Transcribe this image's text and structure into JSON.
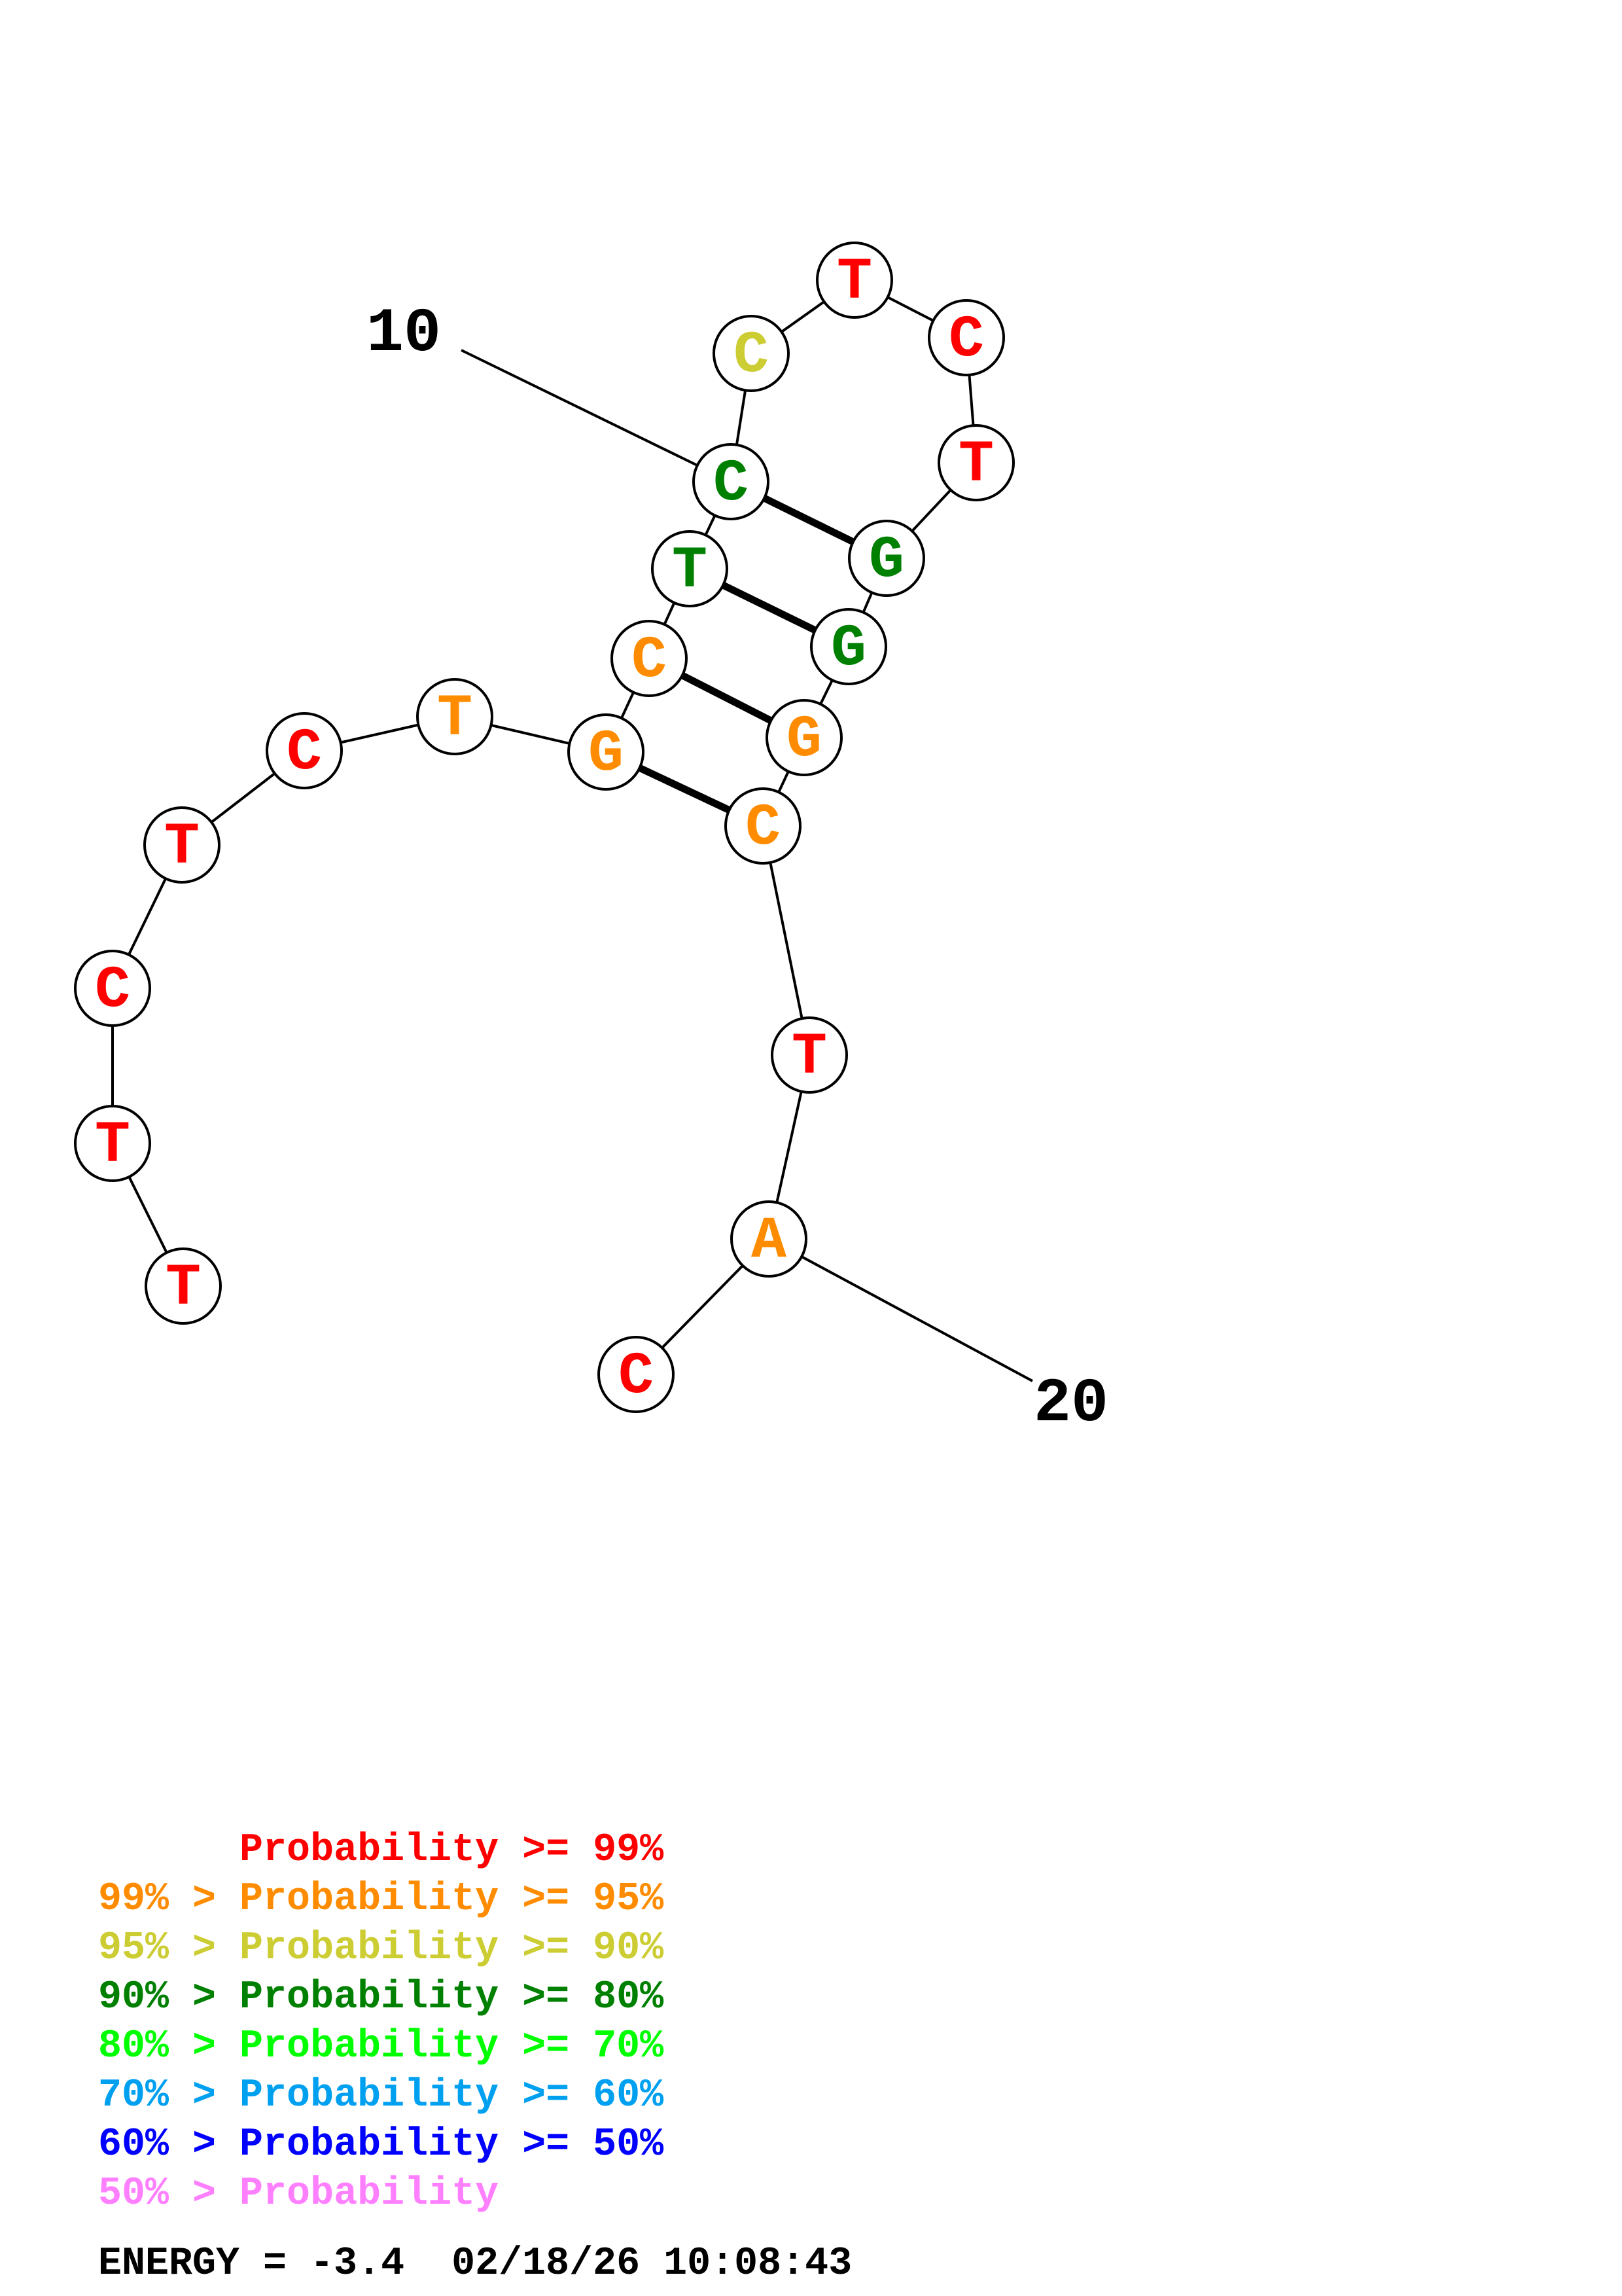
{
  "diagram": {
    "nucleotides": [
      {
        "base": "T",
        "color": "#ff0000"
      },
      {
        "base": "T",
        "color": "#ff0000"
      },
      {
        "base": "C",
        "color": "#ff0000"
      },
      {
        "base": "T",
        "color": "#ff0000"
      },
      {
        "base": "C",
        "color": "#ff0000"
      },
      {
        "base": "T",
        "color": "#ff8c00"
      },
      {
        "base": "G",
        "color": "#ff8c00"
      },
      {
        "base": "C",
        "color": "#ff8c00"
      },
      {
        "base": "T",
        "color": "#008000"
      },
      {
        "base": "C",
        "color": "#008000"
      },
      {
        "base": "C",
        "color": "#cccc33"
      },
      {
        "base": "T",
        "color": "#ff0000"
      },
      {
        "base": "C",
        "color": "#ff0000"
      },
      {
        "base": "T",
        "color": "#ff0000"
      },
      {
        "base": "G",
        "color": "#008000"
      },
      {
        "base": "G",
        "color": "#008000"
      },
      {
        "base": "G",
        "color": "#ff8c00"
      },
      {
        "base": "C",
        "color": "#ff8c00"
      },
      {
        "base": "T",
        "color": "#ff0000"
      },
      {
        "base": "A",
        "color": "#ff8c00"
      },
      {
        "base": "C",
        "color": "#ff0000"
      }
    ],
    "pairs": [
      [
        10,
        15
      ],
      [
        9,
        16
      ],
      [
        8,
        17
      ],
      [
        7,
        18
      ]
    ],
    "position_labels": [
      {
        "position": 10,
        "text": "10"
      },
      {
        "position": 20,
        "text": "20"
      }
    ]
  },
  "legend": [
    {
      "prefix": "     ",
      "text": "Probability >= 99%",
      "color": "#ff0000"
    },
    {
      "prefix": "99% > ",
      "text": "Probability >= 95%",
      "color": "#ff8c00"
    },
    {
      "prefix": "95% > ",
      "text": "Probability >= 90%",
      "color": "#cccc33"
    },
    {
      "prefix": "90% > ",
      "text": "Probability >= 80%",
      "color": "#008000"
    },
    {
      "prefix": "80% > ",
      "text": "Probability >= 70%",
      "color": "#00ff00"
    },
    {
      "prefix": "70% > ",
      "text": "Probability >= 60%",
      "color": "#00a0f0"
    },
    {
      "prefix": "60% > ",
      "text": "Probability >= 50%",
      "color": "#0000ff"
    },
    {
      "prefix": "50% > ",
      "text": "Probability",
      "color": "#ff80ff"
    }
  ],
  "footer": {
    "energy": "ENERGY = -3.4",
    "timestamp": "02/18/26 10:08:43"
  }
}
